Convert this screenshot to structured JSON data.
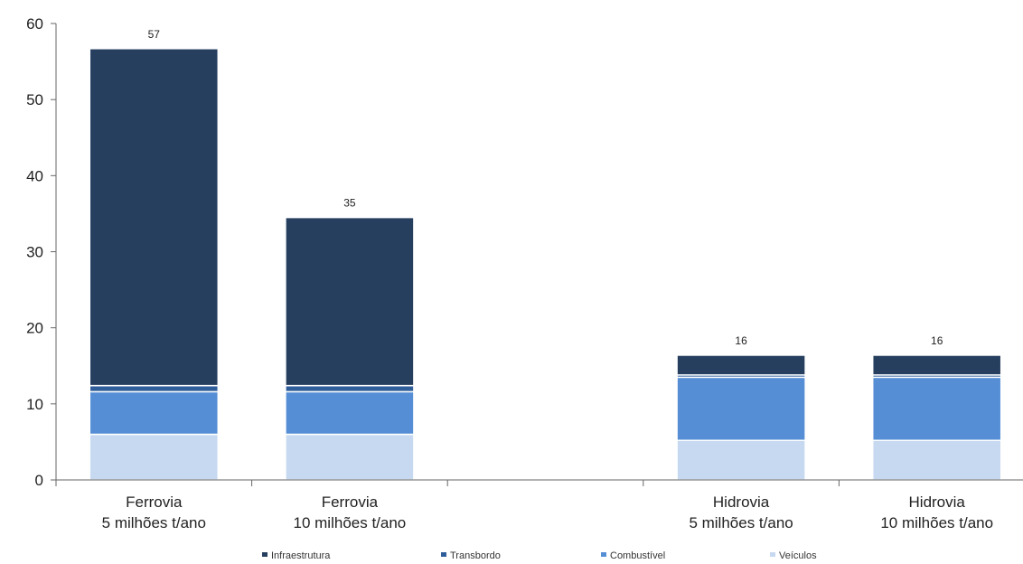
{
  "chart_data": {
    "type": "bar",
    "stacked": true,
    "categories": [
      [
        "Ferrovia",
        "5 milhões t/ano"
      ],
      [
        "Ferrovia",
        "10 milhões t/ano"
      ],
      [
        "",
        ""
      ],
      [
        "Hidrovia",
        "5 milhões t/ano"
      ],
      [
        "Hidrovia",
        "10 milhões t/ano"
      ]
    ],
    "totals": [
      "57",
      "35",
      "",
      "16",
      "16"
    ],
    "series": [
      {
        "name": "Veículos",
        "color": "#c6d9f0",
        "values": [
          6,
          6,
          0,
          5.2,
          5.2
        ]
      },
      {
        "name": "Combustível",
        "color": "#558ed5",
        "values": [
          5.6,
          5.6,
          0,
          8.3,
          8.3
        ]
      },
      {
        "name": "Transbordo",
        "color": "#2f5e9a",
        "values": [
          0.8,
          0.8,
          0,
          0.3,
          0.3
        ]
      },
      {
        "name": "Infraestrutura",
        "color": "#263f5f",
        "values": [
          44.3,
          22.1,
          0,
          2.6,
          2.6
        ]
      }
    ],
    "legend_order": [
      "Infraestrutura",
      "Transbordo",
      "Combustível",
      "Veículos"
    ],
    "ylim": [
      0,
      60
    ],
    "yticks": [
      0,
      10,
      20,
      30,
      40,
      50,
      60
    ],
    "xlabel": "",
    "ylabel": "",
    "grid": false,
    "legend_position": "bottom"
  }
}
